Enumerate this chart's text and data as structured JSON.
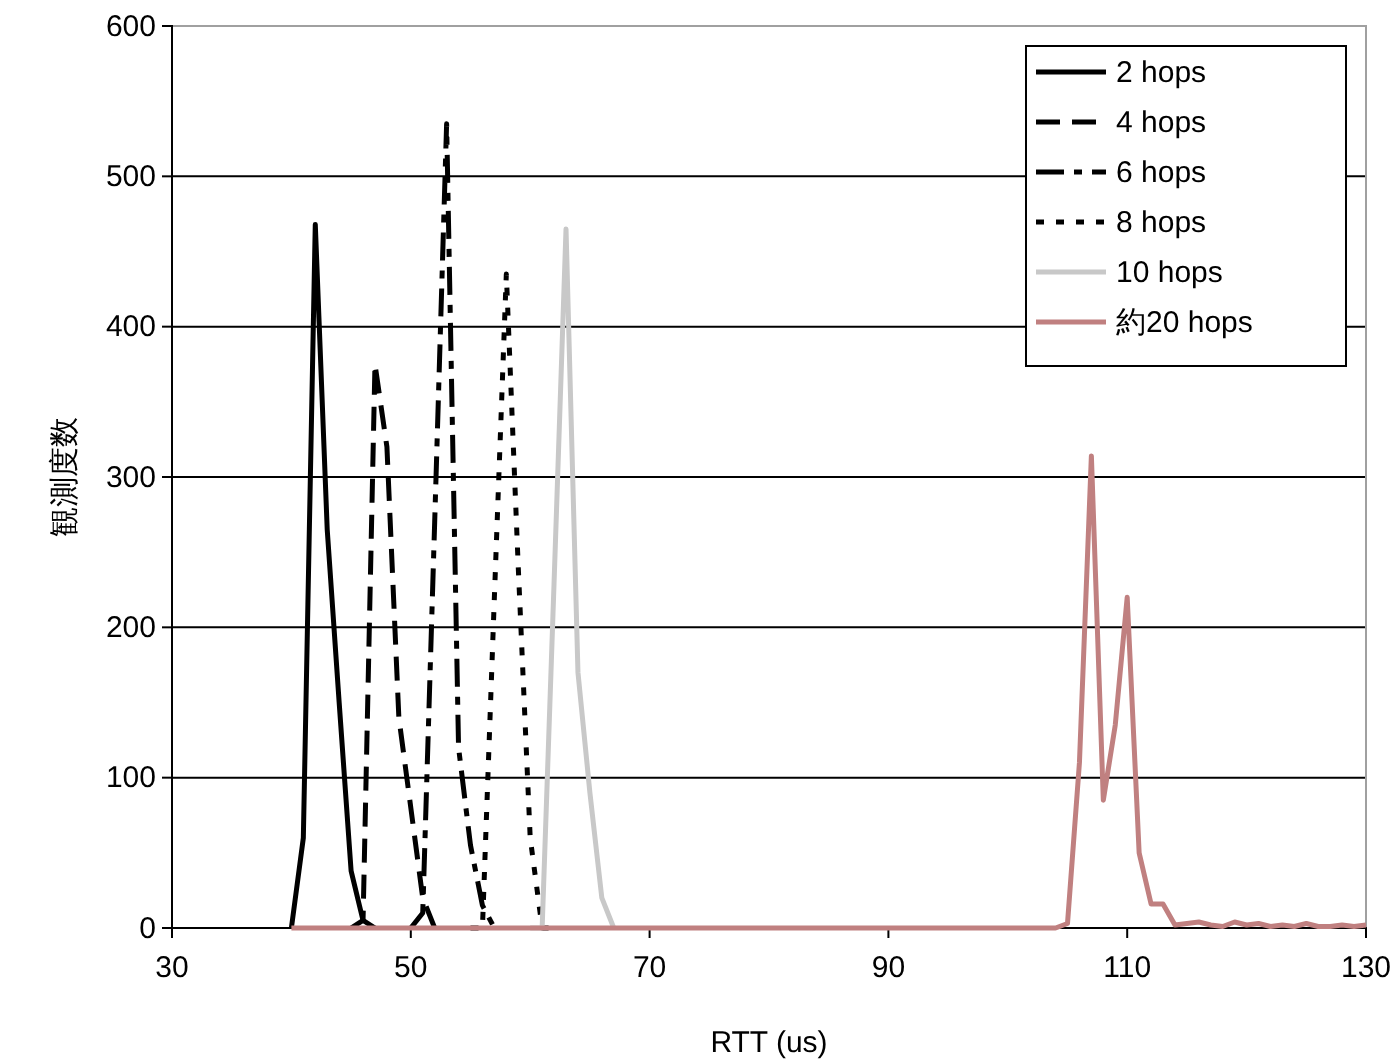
{
  "chart_data": {
    "type": "line",
    "xlabel": "RTT (us)",
    "ylabel": "観測度数",
    "xlim": [
      30,
      130
    ],
    "xticks": [
      30,
      50,
      70,
      90,
      110,
      130
    ],
    "ylim": [
      0,
      600
    ],
    "yticks": [
      0,
      100,
      200,
      300,
      400,
      500,
      600
    ],
    "grid": "y",
    "legend": "top right",
    "marker": "none",
    "series": [
      {
        "name": "2 hops",
        "color": "#000000",
        "line_style": "solid",
        "x": [
          40,
          41,
          42,
          43,
          44,
          45,
          46,
          47
        ],
        "values": [
          0,
          60,
          468,
          265,
          150,
          38,
          5,
          0
        ]
      },
      {
        "name": "4 hops",
        "color": "#000000",
        "line_style": "dashed",
        "x": [
          45,
          46,
          47,
          48,
          49,
          50,
          51,
          52
        ],
        "values": [
          0,
          5,
          375,
          320,
          140,
          80,
          20,
          0
        ]
      },
      {
        "name": "6 hops",
        "color": "#000000",
        "line_style": "dashdot",
        "x": [
          50,
          51,
          52,
          53,
          54,
          55,
          56,
          57
        ],
        "values": [
          0,
          10,
          270,
          535,
          120,
          55,
          15,
          0
        ]
      },
      {
        "name": "8 hops",
        "color": "#000000",
        "line_style": "dotted",
        "x": [
          55,
          56,
          57,
          58,
          59,
          60,
          61,
          62
        ],
        "values": [
          0,
          0,
          220,
          435,
          240,
          60,
          0,
          0
        ]
      },
      {
        "name": "10 hops",
        "color": "#c8c8c8",
        "line_style": "solid",
        "x": [
          60,
          61,
          62,
          63,
          64,
          65,
          66,
          67
        ],
        "values": [
          0,
          0,
          230,
          465,
          170,
          90,
          20,
          0
        ]
      },
      {
        "name": "約20 hops",
        "color": "#c08080",
        "line_style": "solid",
        "x": [
          40,
          104,
          105,
          106,
          107,
          108,
          109,
          110,
          111,
          112,
          113,
          114,
          115,
          116,
          117,
          118,
          119,
          120,
          121,
          122,
          123,
          124,
          125,
          126,
          127,
          128,
          129,
          130
        ],
        "values": [
          0,
          0,
          3,
          110,
          314,
          85,
          135,
          220,
          50,
          16,
          16,
          2,
          3,
          4,
          2,
          1,
          4,
          2,
          3,
          1,
          2,
          1,
          3,
          1,
          1,
          2,
          1,
          2
        ]
      }
    ]
  }
}
